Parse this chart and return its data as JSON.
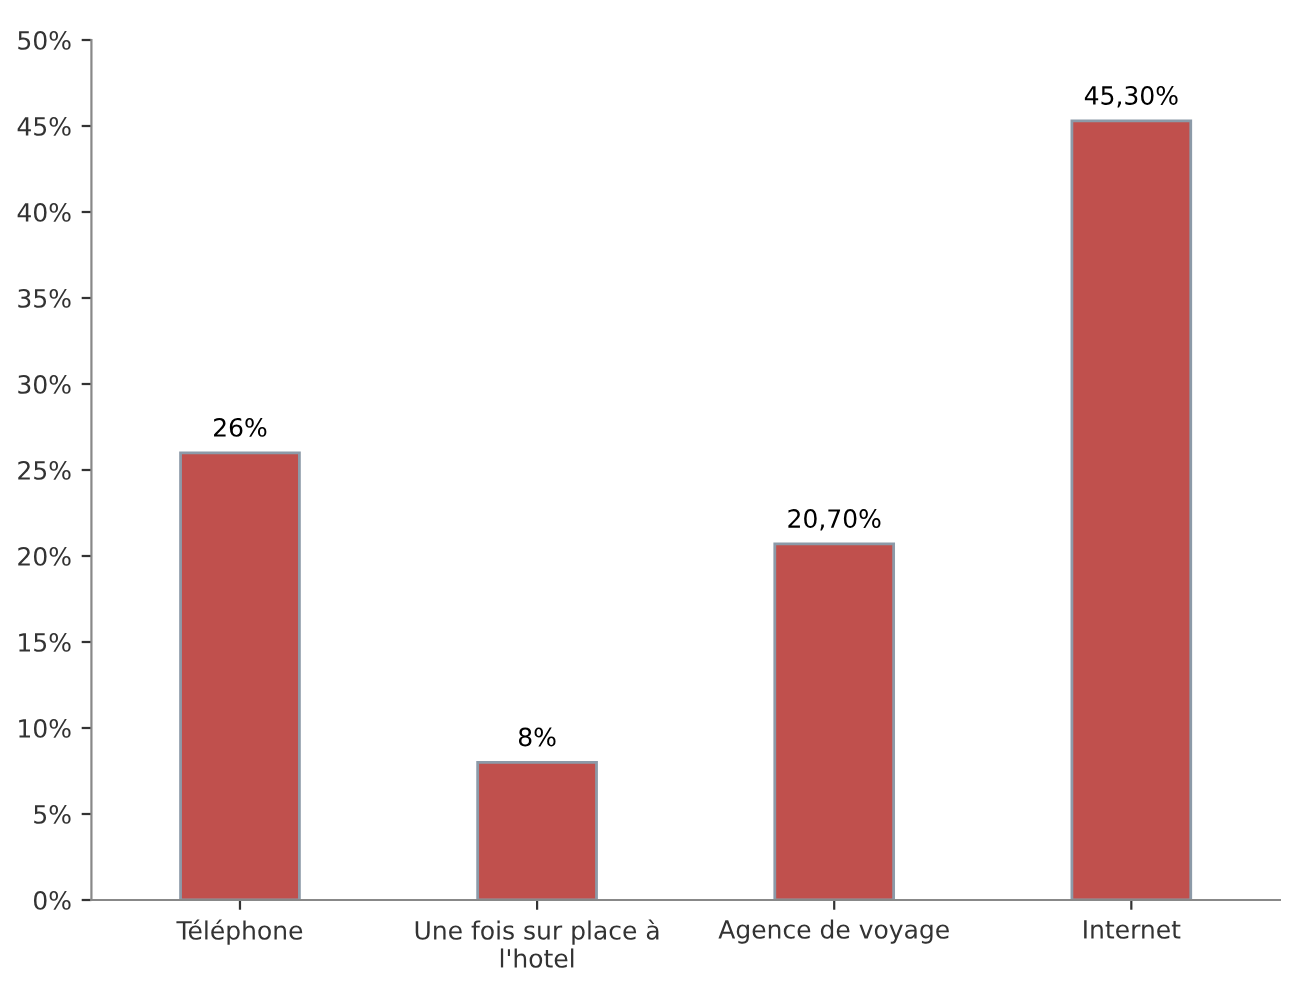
{
  "chart_data": {
    "type": "bar",
    "categories": [
      "Téléphone",
      "Une fois sur place à\nl'hotel",
      "Agence de voyage",
      "Internet"
    ],
    "values": [
      26,
      8,
      20.7,
      45.3
    ],
    "value_labels": [
      "26%",
      "8%",
      "20,70%",
      "45,30%"
    ],
    "color": "#c0504d",
    "ylim": [
      0,
      50
    ],
    "yticks": [
      {
        "value": 0,
        "label": "0%"
      },
      {
        "value": 5,
        "label": "5%"
      },
      {
        "value": 10,
        "label": "10%"
      },
      {
        "value": 15,
        "label": "15%"
      },
      {
        "value": 20,
        "label": "20%"
      },
      {
        "value": 25,
        "label": "25%"
      },
      {
        "value": 30,
        "label": "30%"
      },
      {
        "value": 35,
        "label": "35%"
      },
      {
        "value": 40,
        "label": "40%"
      },
      {
        "value": 45,
        "label": "45%"
      },
      {
        "value": 50,
        "label": "50%"
      }
    ],
    "grid": false,
    "legend": false
  }
}
